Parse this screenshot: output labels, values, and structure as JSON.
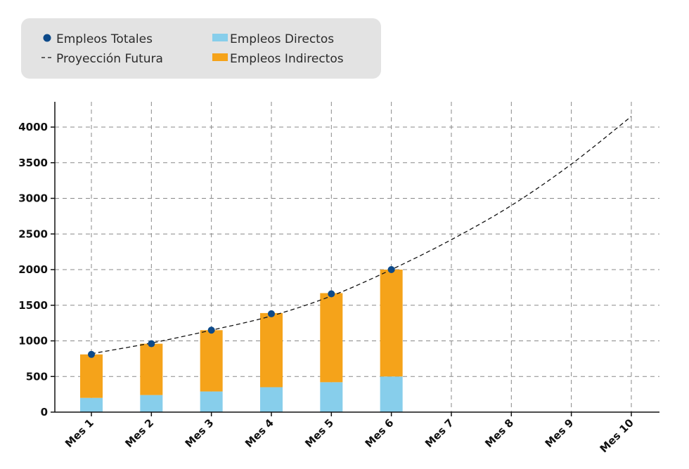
{
  "chart_data": {
    "type": "bar",
    "categories": [
      "Mes 1",
      "Mes 2",
      "Mes 3",
      "Mes 4",
      "Mes 5",
      "Mes 6",
      "Mes 7",
      "Mes 8",
      "Mes 9",
      "Mes 10"
    ],
    "series": [
      {
        "name": "Empleos Directos",
        "kind": "stacked-bar",
        "color": "#87ceeb",
        "values": [
          200,
          240,
          290,
          350,
          420,
          500,
          null,
          null,
          null,
          null
        ]
      },
      {
        "name": "Empleos Indirectos",
        "kind": "stacked-bar",
        "color": "#f5a31a",
        "values": [
          610,
          720,
          860,
          1040,
          1250,
          1500,
          null,
          null,
          null,
          null
        ]
      },
      {
        "name": "Empleos Totales",
        "kind": "points",
        "color": "#0d4a8a",
        "values": [
          810,
          960,
          1150,
          1380,
          1660,
          2000,
          null,
          null,
          null,
          null
        ]
      },
      {
        "name": "Proyección Futura",
        "kind": "dashed-line",
        "color": "#111111",
        "values": [
          820,
          970,
          1150,
          1350,
          1630,
          2000,
          2420,
          2900,
          3480,
          4150
        ]
      }
    ],
    "yticks": [
      0,
      500,
      1000,
      1500,
      2000,
      2500,
      3000,
      3500,
      4000
    ],
    "ylim": [
      0,
      4350
    ],
    "grid": true,
    "legend_position": "top-left",
    "title": "",
    "xlabel": "",
    "ylabel": ""
  }
}
